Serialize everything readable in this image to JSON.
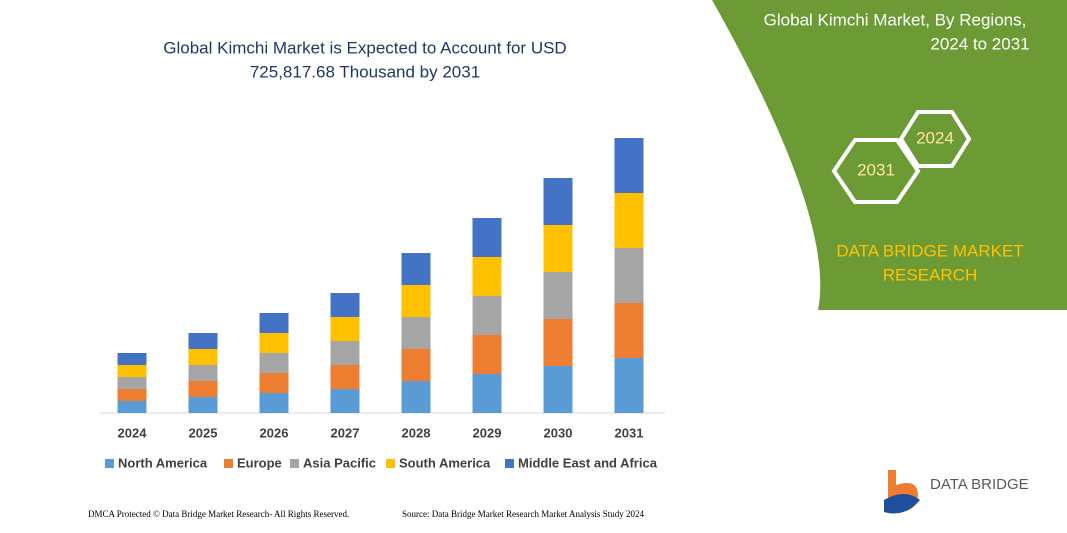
{
  "chart_data": {
    "type": "stacked-bar",
    "title": [
      "Global Kimchi Market is Expected to Account for USD",
      "725,817.68 Thousand  by 2031"
    ],
    "categories": [
      "2024",
      "2025",
      "2026",
      "2027",
      "2028",
      "2029",
      "2030",
      "2031"
    ],
    "series": [
      {
        "name": "North America",
        "color": "#5b9bd5",
        "values": [
          12,
          16,
          20,
          24,
          32,
          39,
          47,
          55
        ]
      },
      {
        "name": "Europe",
        "color": "#ed7d31",
        "values": [
          12,
          16,
          20,
          24,
          32,
          39,
          47,
          55
        ]
      },
      {
        "name": "Asia Pacific",
        "color": "#a5a5a5",
        "values": [
          12,
          16,
          20,
          24,
          32,
          39,
          47,
          55
        ]
      },
      {
        "name": "South America",
        "color": "#ffc000",
        "values": [
          12,
          16,
          20,
          24,
          32,
          39,
          47,
          55
        ]
      },
      {
        "name": "Middle East and Africa",
        "color": "#4472c4",
        "values": [
          12,
          16,
          20,
          24,
          32,
          39,
          47,
          55
        ]
      }
    ],
    "ylim": [
      0,
      300
    ]
  },
  "panel": {
    "title": [
      "Global Kimchi Market, By Regions,",
      "2024 to 2031"
    ],
    "hex_start": "2024",
    "hex_end": "2031",
    "brand": [
      "DATA BRIDGE MARKET",
      "RESEARCH"
    ],
    "logo": "DATA BRIDGE"
  },
  "footer": {
    "left": "DMCA Protected © Data Bridge Market Research-  All Rights Reserved.",
    "right": "Source: Data Bridge Market Research  Market Analysis Study 2024"
  }
}
